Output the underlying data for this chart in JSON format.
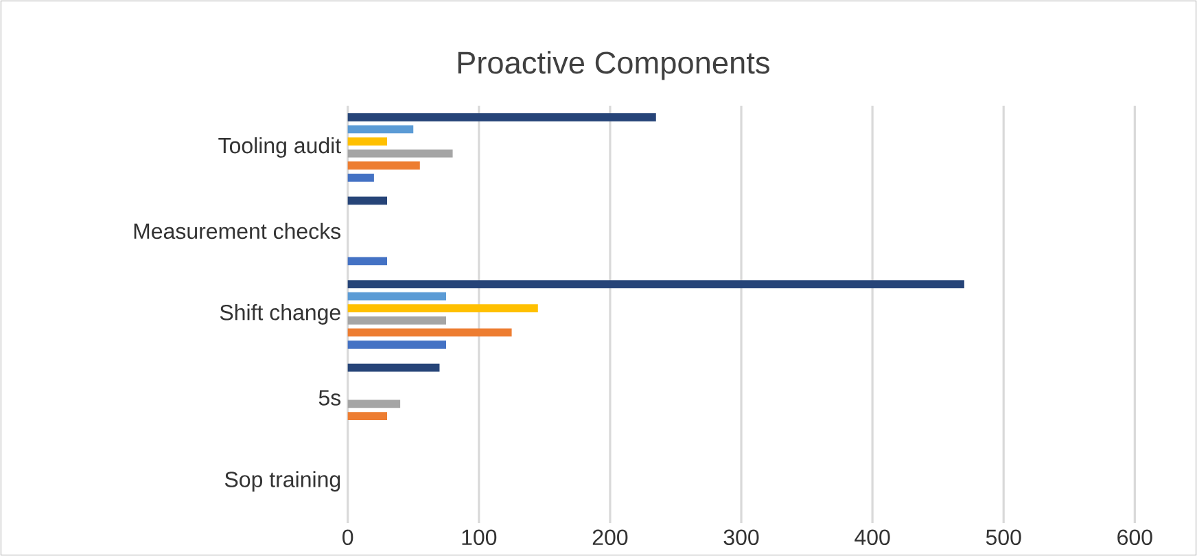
{
  "chart_data": {
    "type": "bar",
    "orientation": "horizontal",
    "title": "Proactive Components",
    "categories": [
      "Tooling audit",
      "Measurement checks",
      "Shift change",
      "5s",
      "Sop training"
    ],
    "series": [
      {
        "color": "#4472c4",
        "values": [
          20,
          30,
          75,
          0,
          0
        ]
      },
      {
        "color": "#ed7d31",
        "values": [
          55,
          0,
          125,
          30,
          0
        ]
      },
      {
        "color": "#a5a5a5",
        "values": [
          80,
          0,
          75,
          40,
          0
        ]
      },
      {
        "color": "#ffc000",
        "values": [
          30,
          0,
          145,
          0,
          0
        ]
      },
      {
        "color": "#5b9bd5",
        "values": [
          50,
          0,
          75,
          0,
          0
        ]
      },
      {
        "color": "#264478",
        "values": [
          235,
          30,
          470,
          70,
          0
        ]
      }
    ],
    "xlim": [
      0,
      600
    ],
    "xticks": [
      0,
      100,
      200,
      300,
      400,
      500,
      600
    ],
    "grid": "x"
  }
}
